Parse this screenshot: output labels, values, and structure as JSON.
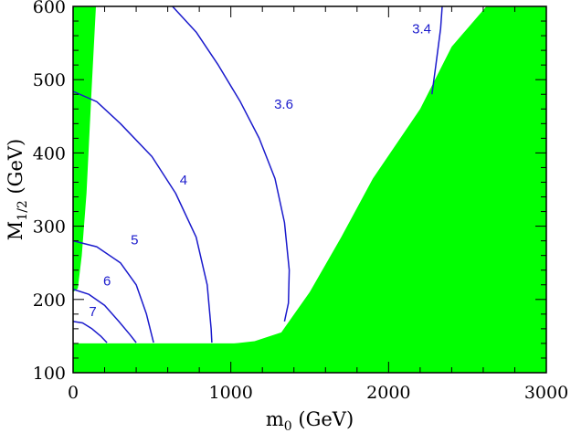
{
  "chart_data": {
    "type": "contour",
    "xlabel": "m",
    "xlabel_sub": "0",
    "xlabel_unit": " (GeV)",
    "ylabel": "M",
    "ylabel_sub": "1/2",
    "ylabel_unit": " (GeV)",
    "xlim": [
      0,
      3000
    ],
    "ylim": [
      100,
      600
    ],
    "xticks": [
      0,
      1000,
      2000,
      3000
    ],
    "yticks": [
      100,
      200,
      300,
      400,
      500,
      600
    ],
    "grid": false,
    "colors": {
      "excluded": "#00ff00",
      "contour": "#1a1acc",
      "axes": "#000000"
    },
    "excluded_regions": [
      {
        "name": "left-excluded",
        "points": [
          [
            0,
            600
          ],
          [
            145,
            600
          ],
          [
            118,
            490
          ],
          [
            85,
            345
          ],
          [
            55,
            260
          ],
          [
            30,
            215
          ],
          [
            0,
            210
          ]
        ]
      },
      {
        "name": "bottom-excluded",
        "points": [
          [
            0,
            100
          ],
          [
            3000,
            100
          ],
          [
            3000,
            140
          ],
          [
            0,
            140
          ]
        ]
      },
      {
        "name": "right-excluded",
        "points": [
          [
            3000,
            100
          ],
          [
            3000,
            600
          ],
          [
            2620,
            600
          ],
          [
            2400,
            545
          ],
          [
            2200,
            460
          ],
          [
            1900,
            365
          ],
          [
            1700,
            285
          ],
          [
            1500,
            210
          ],
          [
            1320,
            155
          ],
          [
            1150,
            143
          ],
          [
            900,
            137
          ],
          [
            600,
            135
          ],
          [
            0,
            136
          ],
          [
            0,
            100
          ]
        ]
      }
    ],
    "contours": [
      {
        "label": "7",
        "label_at": [
          125,
          182
        ],
        "points": [
          [
            0,
            170
          ],
          [
            60,
            168
          ],
          [
            120,
            160
          ],
          [
            175,
            150
          ],
          [
            215,
            141
          ]
        ]
      },
      {
        "label": "6",
        "label_at": [
          215,
          224
        ],
        "points": [
          [
            0,
            214
          ],
          [
            100,
            207
          ],
          [
            200,
            192
          ],
          [
            290,
            170
          ],
          [
            360,
            152
          ],
          [
            400,
            141
          ]
        ]
      },
      {
        "label": "5",
        "label_at": [
          390,
          280
        ],
        "points": [
          [
            0,
            280
          ],
          [
            150,
            272
          ],
          [
            300,
            250
          ],
          [
            400,
            220
          ],
          [
            465,
            180
          ],
          [
            500,
            150
          ],
          [
            510,
            141
          ]
        ]
      },
      {
        "label": "4",
        "label_at": [
          700,
          362
        ],
        "points": [
          [
            0,
            484
          ],
          [
            150,
            470
          ],
          [
            300,
            440
          ],
          [
            500,
            395
          ],
          [
            650,
            345
          ],
          [
            780,
            285
          ],
          [
            850,
            220
          ],
          [
            875,
            160
          ],
          [
            880,
            141
          ]
        ]
      },
      {
        "label": "3.6",
        "label_at": [
          1335,
          465
        ],
        "points": [
          [
            630,
            600
          ],
          [
            780,
            565
          ],
          [
            920,
            520
          ],
          [
            1060,
            470
          ],
          [
            1180,
            420
          ],
          [
            1280,
            365
          ],
          [
            1340,
            305
          ],
          [
            1370,
            240
          ],
          [
            1365,
            195
          ],
          [
            1340,
            170
          ]
        ]
      },
      {
        "label": "3.4",
        "label_at": [
          2210,
          568
        ],
        "points": [
          [
            2340,
            600
          ],
          [
            2330,
            570
          ],
          [
            2300,
            520
          ],
          [
            2275,
            480
          ]
        ]
      }
    ]
  }
}
